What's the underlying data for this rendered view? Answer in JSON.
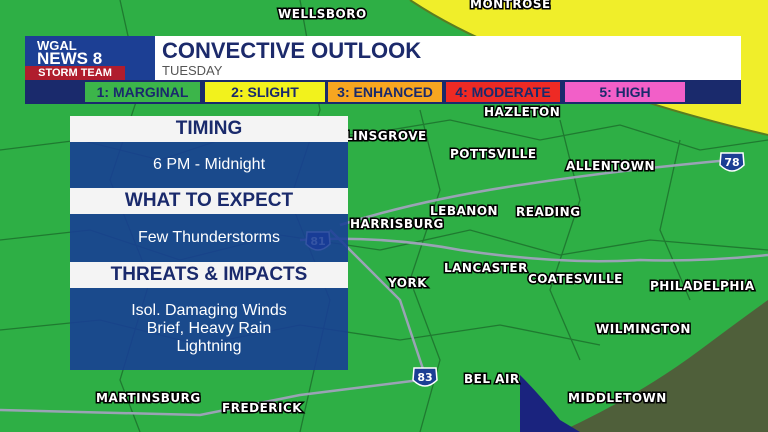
{
  "logo": {
    "line1": "WGAL",
    "line2": "NEWS 8",
    "line3": "STORM TEAM"
  },
  "header": {
    "title": "CONVECTIVE OUTLOOK",
    "subtitle": "TUESDAY"
  },
  "legend": [
    {
      "label": "1: MARGINAL",
      "color": "#3cb54a"
    },
    {
      "label": "2: SLIGHT",
      "color": "#f2f21c"
    },
    {
      "label": "3: ENHANCED",
      "color": "#f7a620"
    },
    {
      "label": "4: MODERATE",
      "color": "#ee2a24"
    },
    {
      "label": "5: HIGH",
      "color": "#f25fc8"
    }
  ],
  "panel": [
    {
      "heading": "TIMING",
      "lines": [
        "6 PM - Midnight"
      ]
    },
    {
      "heading": "WHAT TO EXPECT",
      "lines": [
        "Few Thunderstorms"
      ]
    },
    {
      "heading": "THREATS & IMPACTS",
      "lines": [
        "Isol. Damaging Winds",
        "Brief, Heavy Rain",
        "Lightning"
      ]
    }
  ],
  "cities": [
    "WELLSBORO",
    "MONTROSE",
    "HAZLETON",
    "LINSGROVE",
    "POTTSVILLE",
    "ALLENTOWN",
    "HARRISBURG",
    "LEBANON",
    "READING",
    "LANCASTER",
    "COATESVILLE",
    "PHILADELPHIA",
    "YORK",
    "WILMINGTON",
    "BEL AIR",
    "MIDDLETOWN",
    "MARTINSBURG",
    "FREDERICK"
  ],
  "highways": [
    "78",
    "81",
    "83"
  ]
}
